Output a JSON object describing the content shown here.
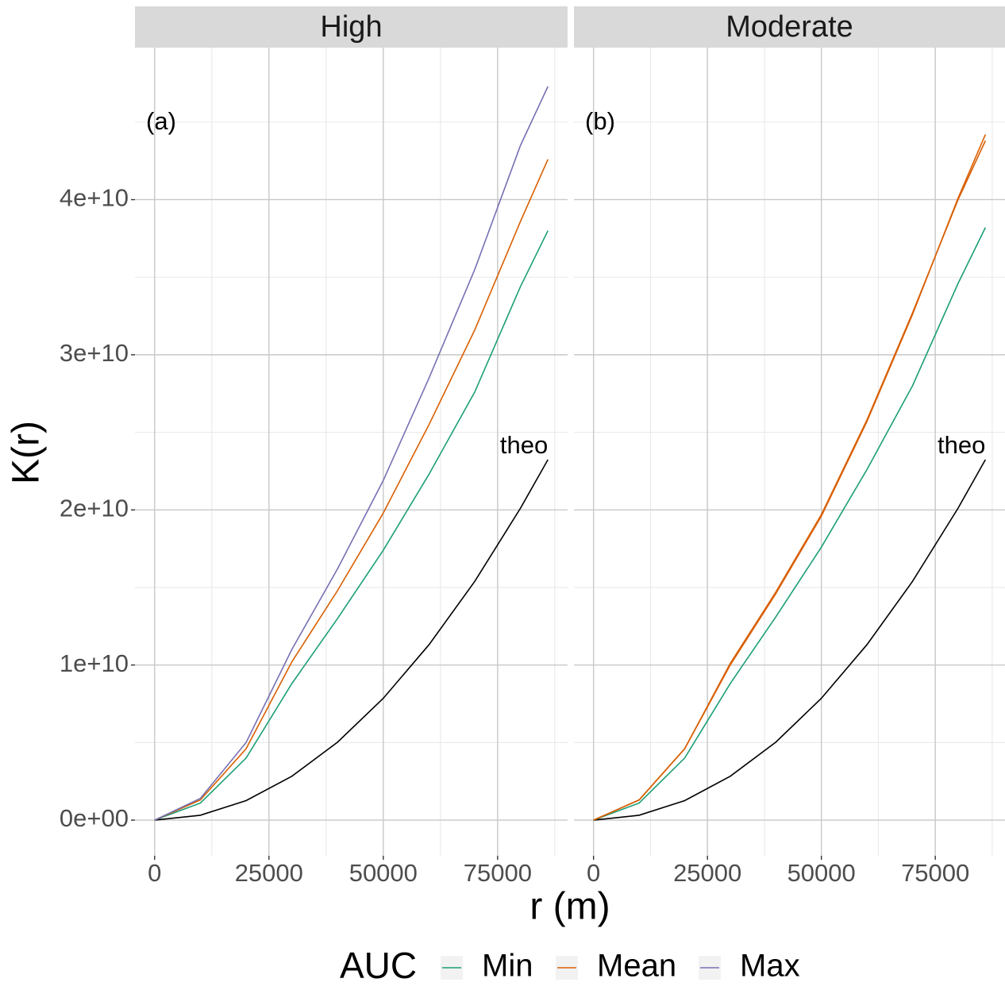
{
  "chart_data": [
    {
      "type": "line",
      "strip": "High",
      "annotation": "(a)",
      "x": [
        0,
        10000,
        20000,
        30000,
        40000,
        50000,
        60000,
        70000,
        80000,
        86000
      ],
      "series": [
        {
          "name": "Min",
          "color": "#1b9e77",
          "values": [
            0,
            1100000000.0,
            4000000000.0,
            8800000000.0,
            13000000000.0,
            17400000000.0,
            22300000000.0,
            27600000000.0,
            34400000000.0,
            38000000000.0
          ]
        },
        {
          "name": "Mean",
          "color": "#d95f02",
          "values": [
            0,
            1300000000.0,
            4600000000.0,
            10200000000.0,
            14800000000.0,
            19800000000.0,
            25500000000.0,
            31600000000.0,
            38600000000.0,
            42600000000.0
          ]
        },
        {
          "name": "Max",
          "color": "#7570b3",
          "values": [
            0,
            1400000000.0,
            5000000000.0,
            11000000000.0,
            16200000000.0,
            21900000000.0,
            28500000000.0,
            35500000000.0,
            43500000000.0,
            47300000000.0
          ]
        }
      ],
      "theo": {
        "name": "theo",
        "color": "#000000",
        "values": [
          0,
          314000000.0,
          1257000000.0,
          2827000000.0,
          5027000000.0,
          7854000000.0,
          11310000000.0,
          15390000000.0,
          20110000000.0,
          23240000000.0
        ]
      },
      "xlim": [
        -4300,
        90300
      ],
      "ylim": [
        -2300000000.0,
        49800000000.0
      ],
      "xticks": [
        0,
        25000,
        50000,
        75000
      ],
      "yticks": [
        {
          "value": 0,
          "label": "0e+00"
        },
        {
          "value": 10000000000.0,
          "label": "1e+10"
        },
        {
          "value": 20000000000.0,
          "label": "2e+10"
        },
        {
          "value": 30000000000.0,
          "label": "3e+10"
        },
        {
          "value": 40000000000.0,
          "label": "4e+10"
        }
      ],
      "grid": true
    },
    {
      "type": "line",
      "strip": "Moderate",
      "annotation": "(b)",
      "x": [
        0,
        10000,
        20000,
        30000,
        40000,
        50000,
        60000,
        70000,
        80000,
        86000
      ],
      "series": [
        {
          "name": "Min",
          "color": "#1b9e77",
          "values": [
            0,
            1100000000.0,
            4000000000.0,
            8800000000.0,
            13100000000.0,
            17600000000.0,
            22600000000.0,
            28000000000.0,
            34600000000.0,
            38200000000.0
          ]
        },
        {
          "name": "Mean",
          "color": "#d95f02",
          "values": [
            0,
            1300000000.0,
            4600000000.0,
            10000000000.0,
            14600000000.0,
            19600000000.0,
            25700000000.0,
            32600000000.0,
            40100000000.0,
            44200000000.0
          ]
        },
        {
          "name": "Max",
          "color": "#d95f02",
          "values": [
            0,
            1300000000.0,
            4600000000.0,
            10100000000.0,
            14700000000.0,
            19700000000.0,
            25800000000.0,
            32700000000.0,
            40000000000.0,
            43800000000.0
          ]
        }
      ],
      "theo": {
        "name": "theo",
        "color": "#000000",
        "values": [
          0,
          314000000.0,
          1257000000.0,
          2827000000.0,
          5027000000.0,
          7854000000.0,
          11310000000.0,
          15390000000.0,
          20110000000.0,
          23240000000.0
        ]
      },
      "xlim": [
        -4300,
        90300
      ],
      "ylim": [
        -2300000000.0,
        49800000000.0
      ],
      "xticks": [
        0,
        25000,
        50000,
        75000
      ],
      "yticks": [
        {
          "value": 0,
          "label": "0e+00"
        },
        {
          "value": 10000000000.0,
          "label": "1e+10"
        },
        {
          "value": 20000000000.0,
          "label": "2e+10"
        },
        {
          "value": 30000000000.0,
          "label": "3e+10"
        },
        {
          "value": 40000000000.0,
          "label": "4e+10"
        }
      ],
      "grid": true
    }
  ],
  "x_label": "r (m)",
  "y_label": "K(r)",
  "legend_title": "AUC"
}
